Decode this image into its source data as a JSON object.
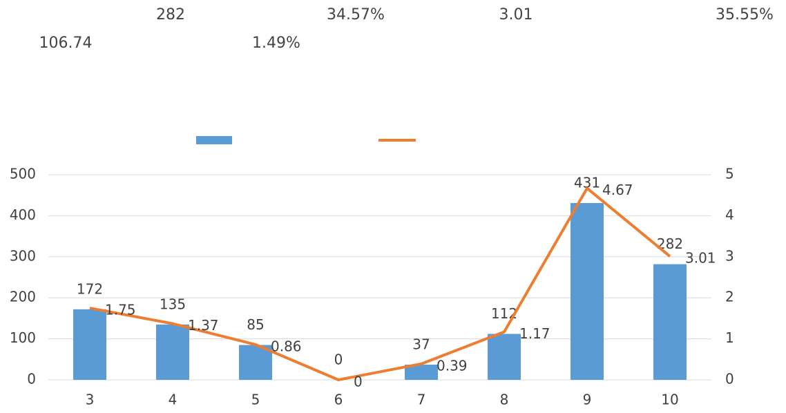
{
  "chart_data": {
    "type": "bar_line",
    "annotations": [
      "282",
      "34.57%",
      "3.01",
      "35.55%",
      "106.74",
      "1.49%"
    ],
    "categories": [
      "3",
      "4",
      "5",
      "6",
      "7",
      "8",
      "9",
      "10"
    ],
    "series": [
      {
        "type": "bar",
        "color": "#5b9bd5",
        "values": [
          172,
          135,
          85,
          0,
          37,
          112,
          431,
          282
        ]
      },
      {
        "type": "line",
        "axis": "y2",
        "color": "#ed7d31",
        "values": [
          1.75,
          1.37,
          0.86,
          0,
          0.39,
          1.17,
          4.67,
          3.01
        ]
      }
    ],
    "ylim": [
      0,
      500
    ],
    "yticks": [
      0,
      100,
      200,
      300,
      400,
      500
    ],
    "y2lim": [
      0,
      5
    ],
    "y2ticks": [
      0,
      1,
      2,
      3,
      4,
      5
    ],
    "grid": true,
    "legend": "top"
  }
}
